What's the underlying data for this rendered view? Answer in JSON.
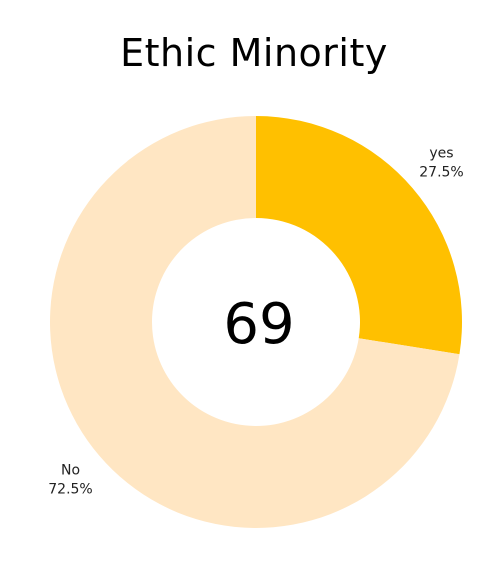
{
  "chart_data": {
    "type": "pie",
    "title": "Ethic Minority",
    "center_label": "69",
    "categories": [
      "yes",
      "No"
    ],
    "values": [
      27.5,
      72.5
    ],
    "value_labels": [
      "27.5%",
      "72.5%"
    ],
    "colors": [
      "#FFC000",
      "#FFE6C3"
    ],
    "donut": true
  }
}
